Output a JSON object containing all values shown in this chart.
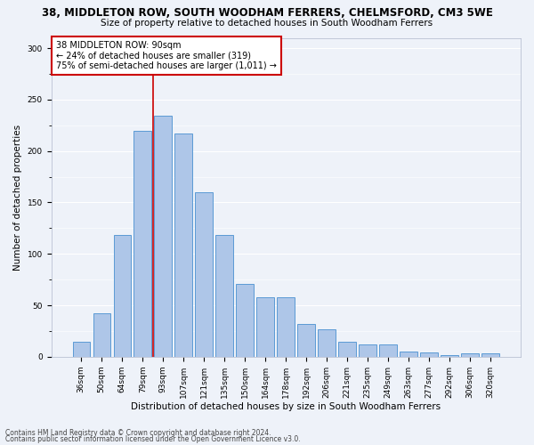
{
  "title": "38, MIDDLETON ROW, SOUTH WOODHAM FERRERS, CHELMSFORD, CM3 5WE",
  "subtitle": "Size of property relative to detached houses in South Woodham Ferrers",
  "xlabel": "Distribution of detached houses by size in South Woodham Ferrers",
  "ylabel": "Number of detached properties",
  "categories": [
    "36sqm",
    "50sqm",
    "64sqm",
    "79sqm",
    "93sqm",
    "107sqm",
    "121sqm",
    "135sqm",
    "150sqm",
    "164sqm",
    "178sqm",
    "192sqm",
    "206sqm",
    "221sqm",
    "235sqm",
    "249sqm",
    "263sqm",
    "277sqm",
    "292sqm",
    "306sqm",
    "320sqm"
  ],
  "values": [
    15,
    42,
    118,
    220,
    234,
    217,
    160,
    118,
    71,
    58,
    58,
    32,
    27,
    15,
    12,
    12,
    5,
    4,
    2,
    3,
    3
  ],
  "bar_color": "#aec6e8",
  "bar_edge_color": "#5b9bd5",
  "vline_color": "#cc0000",
  "vline_x": 3.5,
  "annotation_box_text": "38 MIDDLETON ROW: 90sqm\n← 24% of detached houses are smaller (319)\n75% of semi-detached houses are larger (1,011) →",
  "annotation_box_color": "#ffffff",
  "annotation_box_edge_color": "#cc0000",
  "ylim": [
    0,
    310
  ],
  "yticks": [
    0,
    50,
    100,
    150,
    200,
    250,
    300
  ],
  "footer1": "Contains HM Land Registry data © Crown copyright and database right 2024.",
  "footer2": "Contains public sector information licensed under the Open Government Licence v3.0.",
  "background_color": "#eef2f9",
  "grid_color": "#ffffff",
  "title_fontsize": 8.5,
  "subtitle_fontsize": 7.5,
  "xlabel_fontsize": 7.5,
  "ylabel_fontsize": 7.5,
  "tick_fontsize": 6.5,
  "annotation_fontsize": 7.0,
  "footer_fontsize": 5.5
}
